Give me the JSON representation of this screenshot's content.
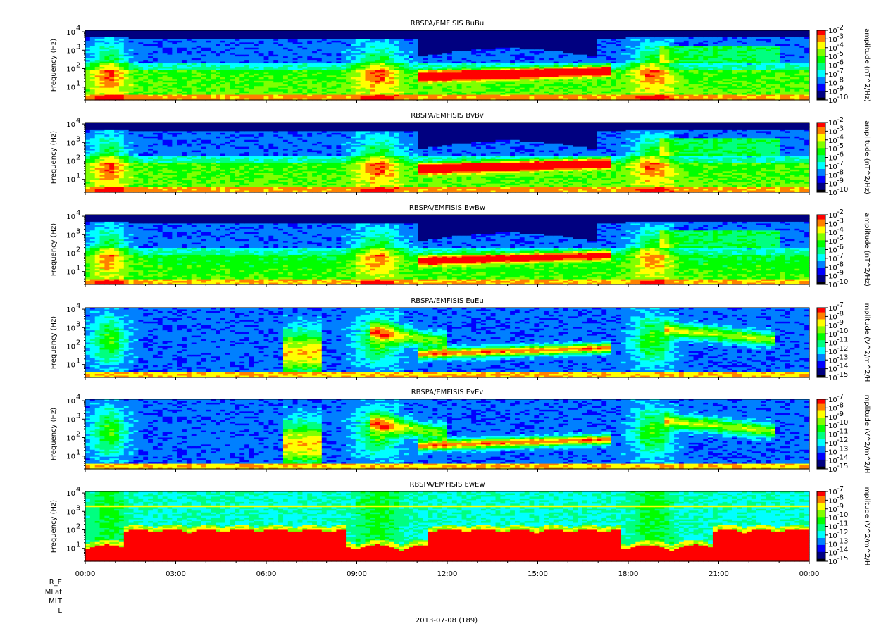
{
  "chart_data": {
    "type": "heatmap",
    "footer_label": "2013-07-08 (189)",
    "x_tick_labels": [
      "00:00",
      "03:00",
      "06:00",
      "09:00",
      "12:00",
      "15:00",
      "18:00",
      "21:00",
      "00:00"
    ],
    "x_range_hours": [
      0,
      24
    ],
    "ephemeris_labels": [
      "R_E",
      "MLat",
      "MLT",
      "L"
    ],
    "panels": [
      {
        "id": "bubu",
        "title": "RBSPA/EMFISIS  BuBu",
        "ylabel": "Frequency (Hz)",
        "y_scale": "log",
        "y_range_hz": [
          2,
          12000
        ],
        "y_tick_labels": [
          "10",
          "10",
          "10",
          "10"
        ],
        "y_tick_exponents": [
          "1",
          "2",
          "3",
          "4"
        ],
        "colorbar_label": "amplitude (nT^2/Hz)",
        "colorbar_scale": "log",
        "colorbar_range": [
          1e-10,
          0.01
        ],
        "colorbar_tick_labels": [
          "10",
          "10",
          "10",
          "10",
          "10",
          "10",
          "10",
          "10",
          "10"
        ],
        "colorbar_tick_exponents": [
          "-2",
          "-3",
          "-4",
          "-5",
          "-6",
          "-7",
          "-8",
          "-9",
          "-10"
        ],
        "field": "B",
        "chorus_band_hz": [
          25,
          80
        ],
        "chorus_hours": [
          11,
          17.5
        ],
        "chorus_level": 0.75
      },
      {
        "id": "bvbv",
        "title": "RBSPA/EMFISIS  BvBv",
        "ylabel": "Frequency (Hz)",
        "y_scale": "log",
        "y_range_hz": [
          2,
          12000
        ],
        "y_tick_labels": [
          "10",
          "10",
          "10",
          "10"
        ],
        "y_tick_exponents": [
          "1",
          "2",
          "3",
          "4"
        ],
        "colorbar_label": "amplitude (nT^2/Hz)",
        "colorbar_scale": "log",
        "colorbar_range": [
          1e-10,
          0.01
        ],
        "colorbar_tick_labels": [
          "10",
          "10",
          "10",
          "10",
          "10",
          "10",
          "10",
          "10",
          "10"
        ],
        "colorbar_tick_exponents": [
          "-2",
          "-3",
          "-4",
          "-5",
          "-6",
          "-7",
          "-8",
          "-9",
          "-10"
        ],
        "field": "B",
        "chorus_band_hz": [
          25,
          80
        ],
        "chorus_hours": [
          11,
          17.5
        ],
        "chorus_level": 0.72
      },
      {
        "id": "bwbw",
        "title": "RBSPA/EMFISIS  BwBw",
        "ylabel": "Frequency (Hz)",
        "y_scale": "log",
        "y_range_hz": [
          2,
          12000
        ],
        "y_tick_labels": [
          "10",
          "10",
          "10",
          "10"
        ],
        "y_tick_exponents": [
          "1",
          "2",
          "3",
          "4"
        ],
        "colorbar_label": "amplitude (nT^2/Hz)",
        "colorbar_scale": "log",
        "colorbar_range": [
          1e-10,
          0.01
        ],
        "colorbar_tick_labels": [
          "10",
          "10",
          "10",
          "10",
          "10",
          "10",
          "10",
          "10",
          "10"
        ],
        "colorbar_tick_exponents": [
          "-2",
          "-3",
          "-4",
          "-5",
          "-6",
          "-7",
          "-8",
          "-9",
          "-10"
        ],
        "field": "Bw",
        "chorus_band_hz": [
          25,
          80
        ],
        "chorus_hours": [
          11,
          17.5
        ],
        "chorus_level": 0.55
      },
      {
        "id": "eueu",
        "title": "RBSPA/EMFISIS  EuEu",
        "ylabel": "Frequency (Hz)",
        "y_scale": "log",
        "y_range_hz": [
          2,
          12000
        ],
        "y_tick_labels": [
          "10",
          "10",
          "10",
          "10"
        ],
        "y_tick_exponents": [
          "1",
          "2",
          "3",
          "4"
        ],
        "colorbar_label": "mplitude (V^2/m^2/H",
        "colorbar_scale": "log",
        "colorbar_range": [
          1e-15,
          1e-07
        ],
        "colorbar_tick_labels": [
          "10",
          "10",
          "10",
          "10",
          "10",
          "10",
          "10",
          "10",
          "10"
        ],
        "colorbar_tick_exponents": [
          "-7",
          "-8",
          "-9",
          "-10",
          "-11",
          "-12",
          "-13",
          "-14",
          "-15"
        ],
        "field": "E",
        "chorus_band_hz": [
          25,
          80
        ],
        "chorus_hours": [
          11,
          17.5
        ],
        "chorus_level": 0.85
      },
      {
        "id": "evev",
        "title": "RBSPA/EMFISIS  EvEv",
        "ylabel": "Frequency (Hz)",
        "y_scale": "log",
        "y_range_hz": [
          2,
          12000
        ],
        "y_tick_labels": [
          "10",
          "10",
          "10",
          "10"
        ],
        "y_tick_exponents": [
          "1",
          "2",
          "3",
          "4"
        ],
        "colorbar_label": "mplitude (V^2/m^2/H",
        "colorbar_scale": "log",
        "colorbar_range": [
          1e-15,
          1e-07
        ],
        "colorbar_tick_labels": [
          "10",
          "10",
          "10",
          "10",
          "10",
          "10",
          "10",
          "10",
          "10"
        ],
        "colorbar_tick_exponents": [
          "-7",
          "-8",
          "-9",
          "-10",
          "-11",
          "-12",
          "-13",
          "-14",
          "-15"
        ],
        "field": "E",
        "chorus_band_hz": [
          25,
          80
        ],
        "chorus_hours": [
          11,
          17.5
        ],
        "chorus_level": 0.85
      },
      {
        "id": "ewew",
        "title": "RBSPA/EMFISIS  EwEw",
        "ylabel": "Frequency (Hz)",
        "y_scale": "log",
        "y_range_hz": [
          2,
          12000
        ],
        "y_tick_labels": [
          "10",
          "10",
          "10",
          "10"
        ],
        "y_tick_exponents": [
          "1",
          "2",
          "3",
          "4"
        ],
        "colorbar_label": "mplitude (V^2/m^2/H",
        "colorbar_scale": "log",
        "colorbar_range": [
          1e-15,
          1e-07
        ],
        "colorbar_tick_labels": [
          "10",
          "10",
          "10",
          "10",
          "10",
          "10",
          "10",
          "10",
          "10"
        ],
        "colorbar_tick_exponents": [
          "-7",
          "-8",
          "-9",
          "-10",
          "-11",
          "-12",
          "-13",
          "-14",
          "-15"
        ],
        "field": "Ew",
        "chorus_band_hz": [
          25,
          80
        ],
        "chorus_hours": [
          11,
          17.5
        ],
        "chorus_level": 0.4
      }
    ],
    "colormap": [
      "#000000",
      "#000080",
      "#0000ff",
      "#0080ff",
      "#00ffff",
      "#00ff80",
      "#00ff00",
      "#80ff00",
      "#ffff00",
      "#ff8000",
      "#ff0000"
    ]
  }
}
